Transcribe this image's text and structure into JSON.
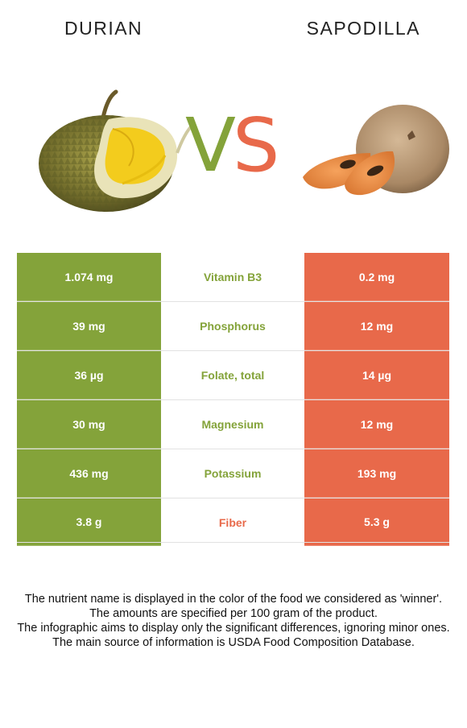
{
  "header": {
    "left_title": "DURIAN",
    "right_title": "SAPODILLA",
    "vs_v": "V",
    "vs_s": "S"
  },
  "colors": {
    "durian": "#84a33a",
    "sapodilla": "#e8694a"
  },
  "comparison": [
    {
      "left": "1.074 mg",
      "nutrient": "Vitamin B3",
      "right": "0.2 mg",
      "winner": "durian"
    },
    {
      "left": "39 mg",
      "nutrient": "Phosphorus",
      "right": "12 mg",
      "winner": "durian"
    },
    {
      "left": "36 µg",
      "nutrient": "Folate, total",
      "right": "14 µg",
      "winner": "durian"
    },
    {
      "left": "30 mg",
      "nutrient": "Magnesium",
      "right": "12 mg",
      "winner": "durian"
    },
    {
      "left": "436 mg",
      "nutrient": "Potassium",
      "right": "193 mg",
      "winner": "durian"
    },
    {
      "left": "3.8 g",
      "nutrient": "Fiber",
      "right": "5.3 g",
      "winner": "sapodilla"
    }
  ],
  "notes": [
    "The nutrient name is displayed in the color of the food we considered as 'winner'.",
    "The amounts are specified per 100 gram of the product.",
    "The infographic aims to display only the significant differences, ignoring minor ones.",
    "The main source of information is USDA Food Composition Database."
  ]
}
